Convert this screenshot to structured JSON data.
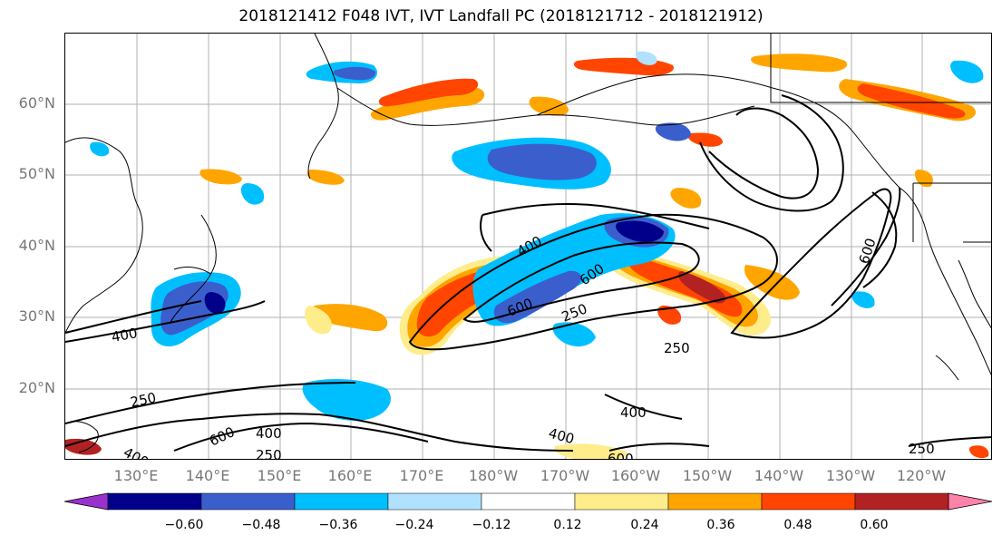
{
  "title": "2018121412 F048 IVT, IVT Landfall PC (2018121712 - 2018121912)",
  "lat_labels": [
    "60°N",
    "50°N",
    "40°N",
    "30°N",
    "20°N"
  ],
  "lon_labels": [
    "130°E",
    "140°E",
    "150°E",
    "160°E",
    "170°E",
    "180°W",
    "170°W",
    "160°W",
    "150°W",
    "140°W",
    "130°W",
    "120°W"
  ],
  "colorbar": {
    "ticks": [
      "−0.60",
      "−0.48",
      "−0.36",
      "−0.24",
      "−0.12",
      "0.12",
      "0.24",
      "0.36",
      "0.48",
      "0.60"
    ],
    "colors": [
      "#9932cc",
      "#00008b",
      "#3a5fcd",
      "#00bfff",
      "#b0e2ff",
      "#ffffff",
      "#ffec8b",
      "#ffa500",
      "#ff4500",
      "#b22222",
      "#ff82ab"
    ]
  },
  "contour_labels": [
    "400",
    "250",
    "400",
    "600",
    "250",
    "400",
    "600",
    "250",
    "600",
    "400",
    "400",
    "600",
    "600",
    "250",
    "400",
    "250",
    "400",
    "600",
    "600",
    "250"
  ],
  "colors": {
    "contour": "#000000",
    "coast": "#000000",
    "grid": "#b0b0b0",
    "label": "#777777"
  }
}
